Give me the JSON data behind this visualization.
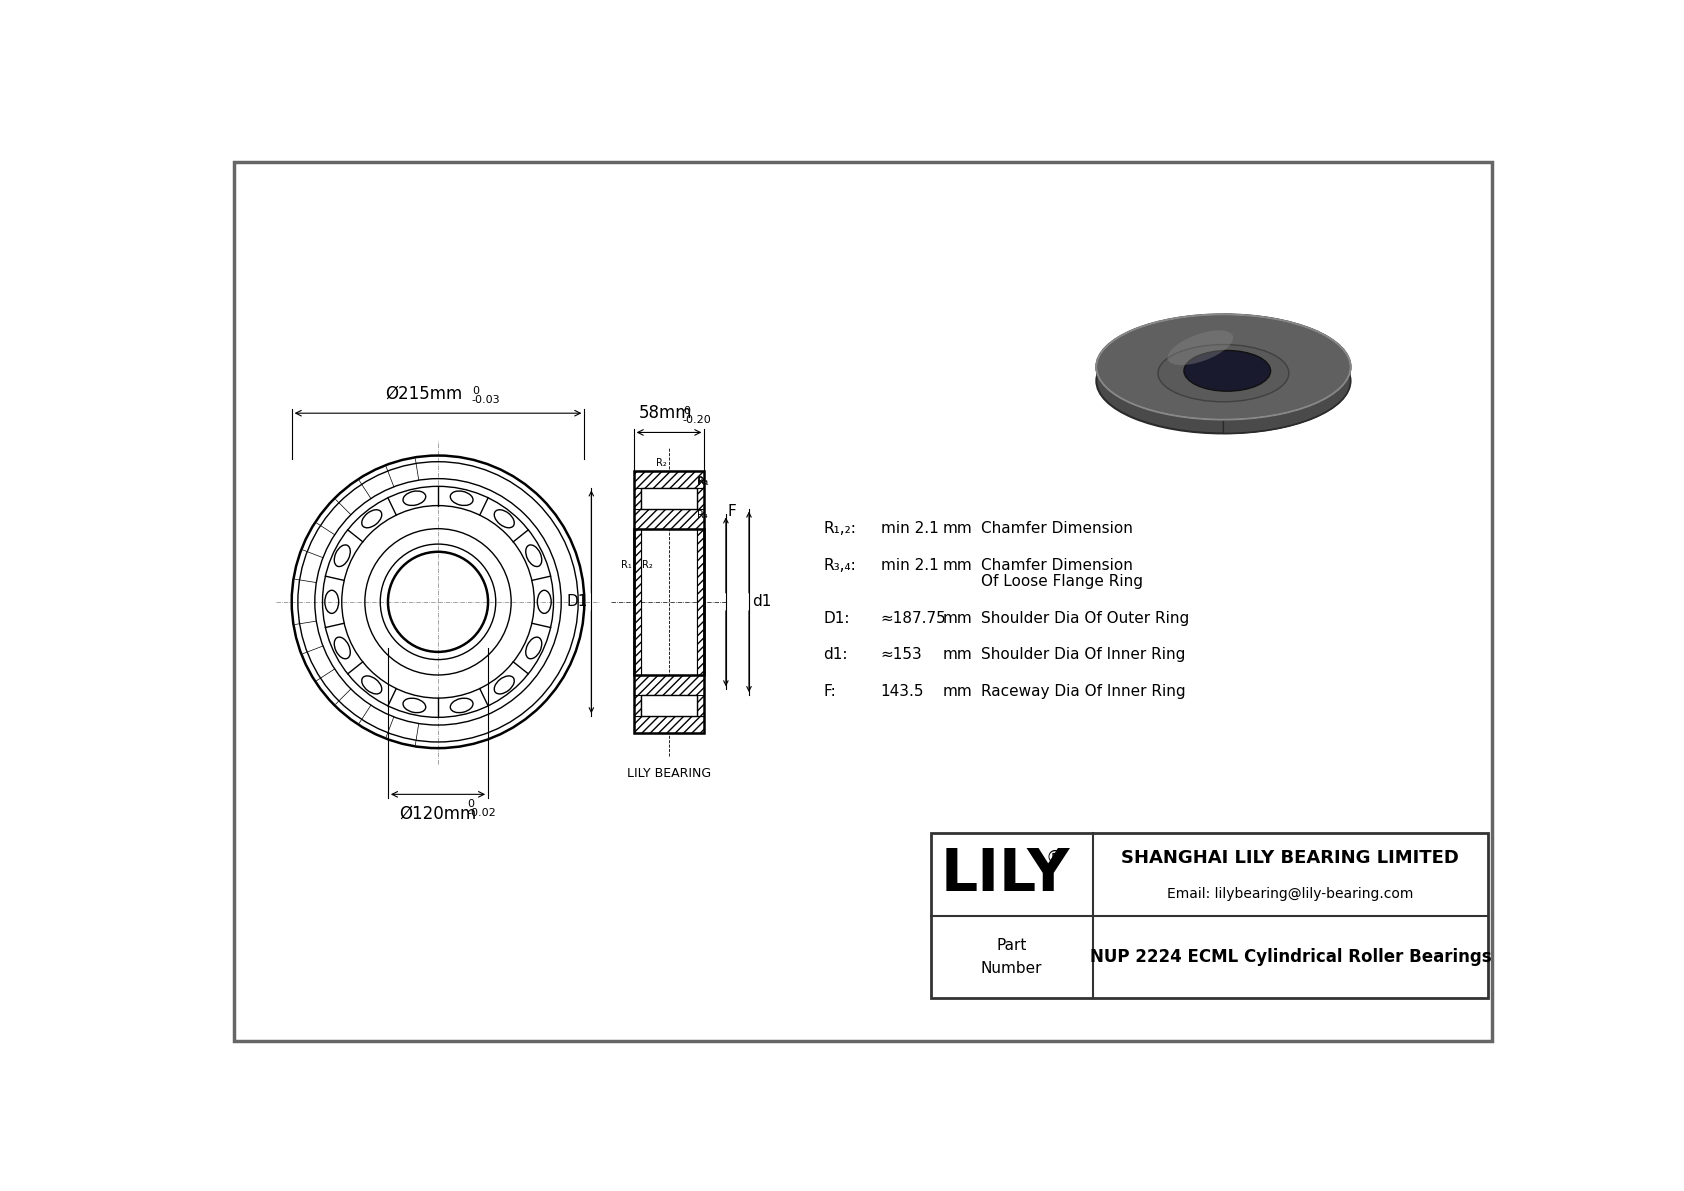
{
  "bg_color": "#ffffff",
  "line_color": "#000000",
  "border_color": "#555555",
  "od_label": "Ø215mm",
  "od_tol_top": "0",
  "od_tol_bot": "-0.03",
  "id_label": "Ø120mm",
  "id_tol_top": "0",
  "id_tol_bot": "-0.02",
  "width_label": "58mm",
  "width_tol_top": "0",
  "width_tol_bot": "-0.20",
  "r12_label": "R₁,₂:",
  "r12_val": "min 2.1",
  "r12_unit": "mm",
  "r12_desc": "Chamfer Dimension",
  "r34_label": "R₃,₄:",
  "r34_val": "min 2.1",
  "r34_unit": "mm",
  "r34_desc": "Chamfer Dimension",
  "r34_desc2": "Of Loose Flange Ring",
  "D1_label": "D1:",
  "D1_val": "≈187.75",
  "D1_unit": "mm",
  "D1_desc": "Shoulder Dia Of Outer Ring",
  "d1_label": "d1:",
  "d1_val": "≈153",
  "d1_unit": "mm",
  "d1_desc": "Shoulder Dia Of Inner Ring",
  "F_label": "F:",
  "F_val": "143.5",
  "F_unit": "mm",
  "F_desc": "Raceway Dia Of Inner Ring",
  "lily_brand": "LILY",
  "company": "SHANGHAI LILY BEARING LIMITED",
  "email": "Email: lilybearing@lily-bearing.com",
  "part_label": "Part\nNumber",
  "part_number": "NUP 2224 ECML Cylindrical Roller Bearings",
  "lily_bearing_label": "LILY BEARING"
}
